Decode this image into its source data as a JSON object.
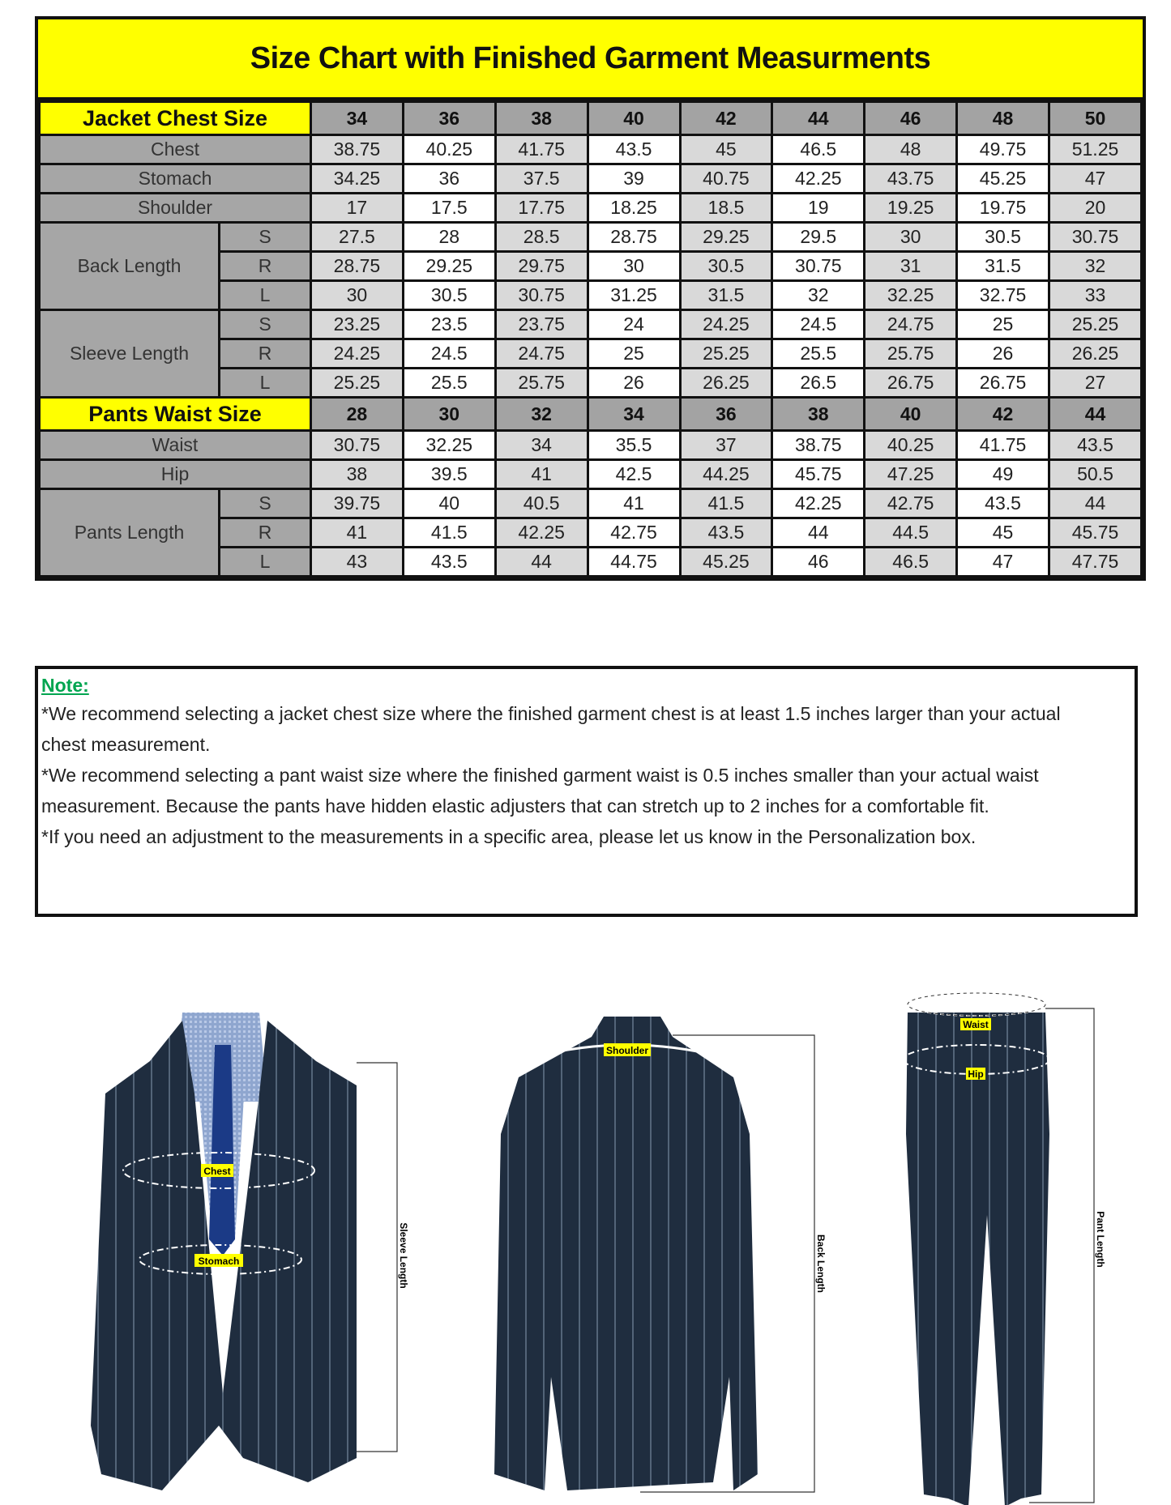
{
  "title": "Size Chart with Finished Garment Measurments",
  "colors": {
    "header_yellow": "#ffff00",
    "label_gray": "#a6a6a6",
    "note_green": "#00a550",
    "suit_navy": "#1f2d3f"
  },
  "jacket": {
    "label": "Jacket Chest Size",
    "sizes": [
      "34",
      "36",
      "38",
      "40",
      "42",
      "44",
      "46",
      "48",
      "50"
    ],
    "measurements": [
      {
        "name": "Chest",
        "values": [
          "38.75",
          "40.25",
          "41.75",
          "43.5",
          "45",
          "46.5",
          "48",
          "49.75",
          "51.25"
        ]
      },
      {
        "name": "Stomach",
        "values": [
          "34.25",
          "36",
          "37.5",
          "39",
          "40.75",
          "42.25",
          "43.75",
          "45.25",
          "47"
        ]
      },
      {
        "name": "Shoulder",
        "values": [
          "17",
          "17.5",
          "17.75",
          "18.25",
          "18.5",
          "19",
          "19.25",
          "19.75",
          "20"
        ]
      },
      {
        "name": "Back Length",
        "variants": [
          {
            "fit": "S",
            "values": [
              "27.5",
              "28",
              "28.5",
              "28.75",
              "29.25",
              "29.5",
              "30",
              "30.5",
              "30.75"
            ]
          },
          {
            "fit": "R",
            "values": [
              "28.75",
              "29.25",
              "29.75",
              "30",
              "30.5",
              "30.75",
              "31",
              "31.5",
              "32"
            ]
          },
          {
            "fit": "L",
            "values": [
              "30",
              "30.5",
              "30.75",
              "31.25",
              "31.5",
              "32",
              "32.25",
              "32.75",
              "33"
            ]
          }
        ]
      },
      {
        "name": "Sleeve Length",
        "variants": [
          {
            "fit": "S",
            "values": [
              "23.25",
              "23.5",
              "23.75",
              "24",
              "24.25",
              "24.5",
              "24.75",
              "25",
              "25.25"
            ]
          },
          {
            "fit": "R",
            "values": [
              "24.25",
              "24.5",
              "24.75",
              "25",
              "25.25",
              "25.5",
              "25.75",
              "26",
              "26.25"
            ]
          },
          {
            "fit": "L",
            "values": [
              "25.25",
              "25.5",
              "25.75",
              "26",
              "26.25",
              "26.5",
              "26.75",
              "26.75",
              "27"
            ]
          }
        ]
      }
    ]
  },
  "pants": {
    "label": "Pants Waist Size",
    "sizes": [
      "28",
      "30",
      "32",
      "34",
      "36",
      "38",
      "40",
      "42",
      "44"
    ],
    "measurements": [
      {
        "name": "Waist",
        "values": [
          "30.75",
          "32.25",
          "34",
          "35.5",
          "37",
          "38.75",
          "40.25",
          "41.75",
          "43.5"
        ]
      },
      {
        "name": "Hip",
        "values": [
          "38",
          "39.5",
          "41",
          "42.5",
          "44.25",
          "45.75",
          "47.25",
          "49",
          "50.5"
        ]
      },
      {
        "name": "Pants Length",
        "variants": [
          {
            "fit": "S",
            "values": [
              "39.75",
              "40",
              "40.5",
              "41",
              "41.5",
              "42.25",
              "42.75",
              "43.5",
              "44"
            ]
          },
          {
            "fit": "R",
            "values": [
              "41",
              "41.5",
              "42.25",
              "42.75",
              "43.5",
              "44",
              "44.5",
              "45",
              "45.75"
            ]
          },
          {
            "fit": "L",
            "values": [
              "43",
              "43.5",
              "44",
              "44.75",
              "45.25",
              "46",
              "46.5",
              "47",
              "47.75"
            ]
          }
        ]
      }
    ]
  },
  "note": {
    "title": "Note:",
    "lines": [
      "*We recommend selecting a jacket chest size where the finished garment chest is at least 1.5 inches larger than your actual",
      "chest measurement.",
      "*We recommend selecting a pant waist size where the finished garment waist is 0.5 inches smaller than your actual waist",
      "measurement. Because the pants have hidden elastic adjusters that can stretch up to 2 inches for a comfortable fit.",
      "*If you need an adjustment to the measurements in a specific area, please let us know in the Personalization box."
    ]
  },
  "illustrations": {
    "jacket_front": {
      "chest_label": "Chest",
      "stomach_label": "Stomach",
      "length_label": "Sleeve Length"
    },
    "jacket_back": {
      "shoulder_label": "Shoulder",
      "length_label": "Back Length"
    },
    "pants": {
      "waist_label": "Waist",
      "hip_label": "Hip",
      "length_label": "Pant Length"
    }
  }
}
